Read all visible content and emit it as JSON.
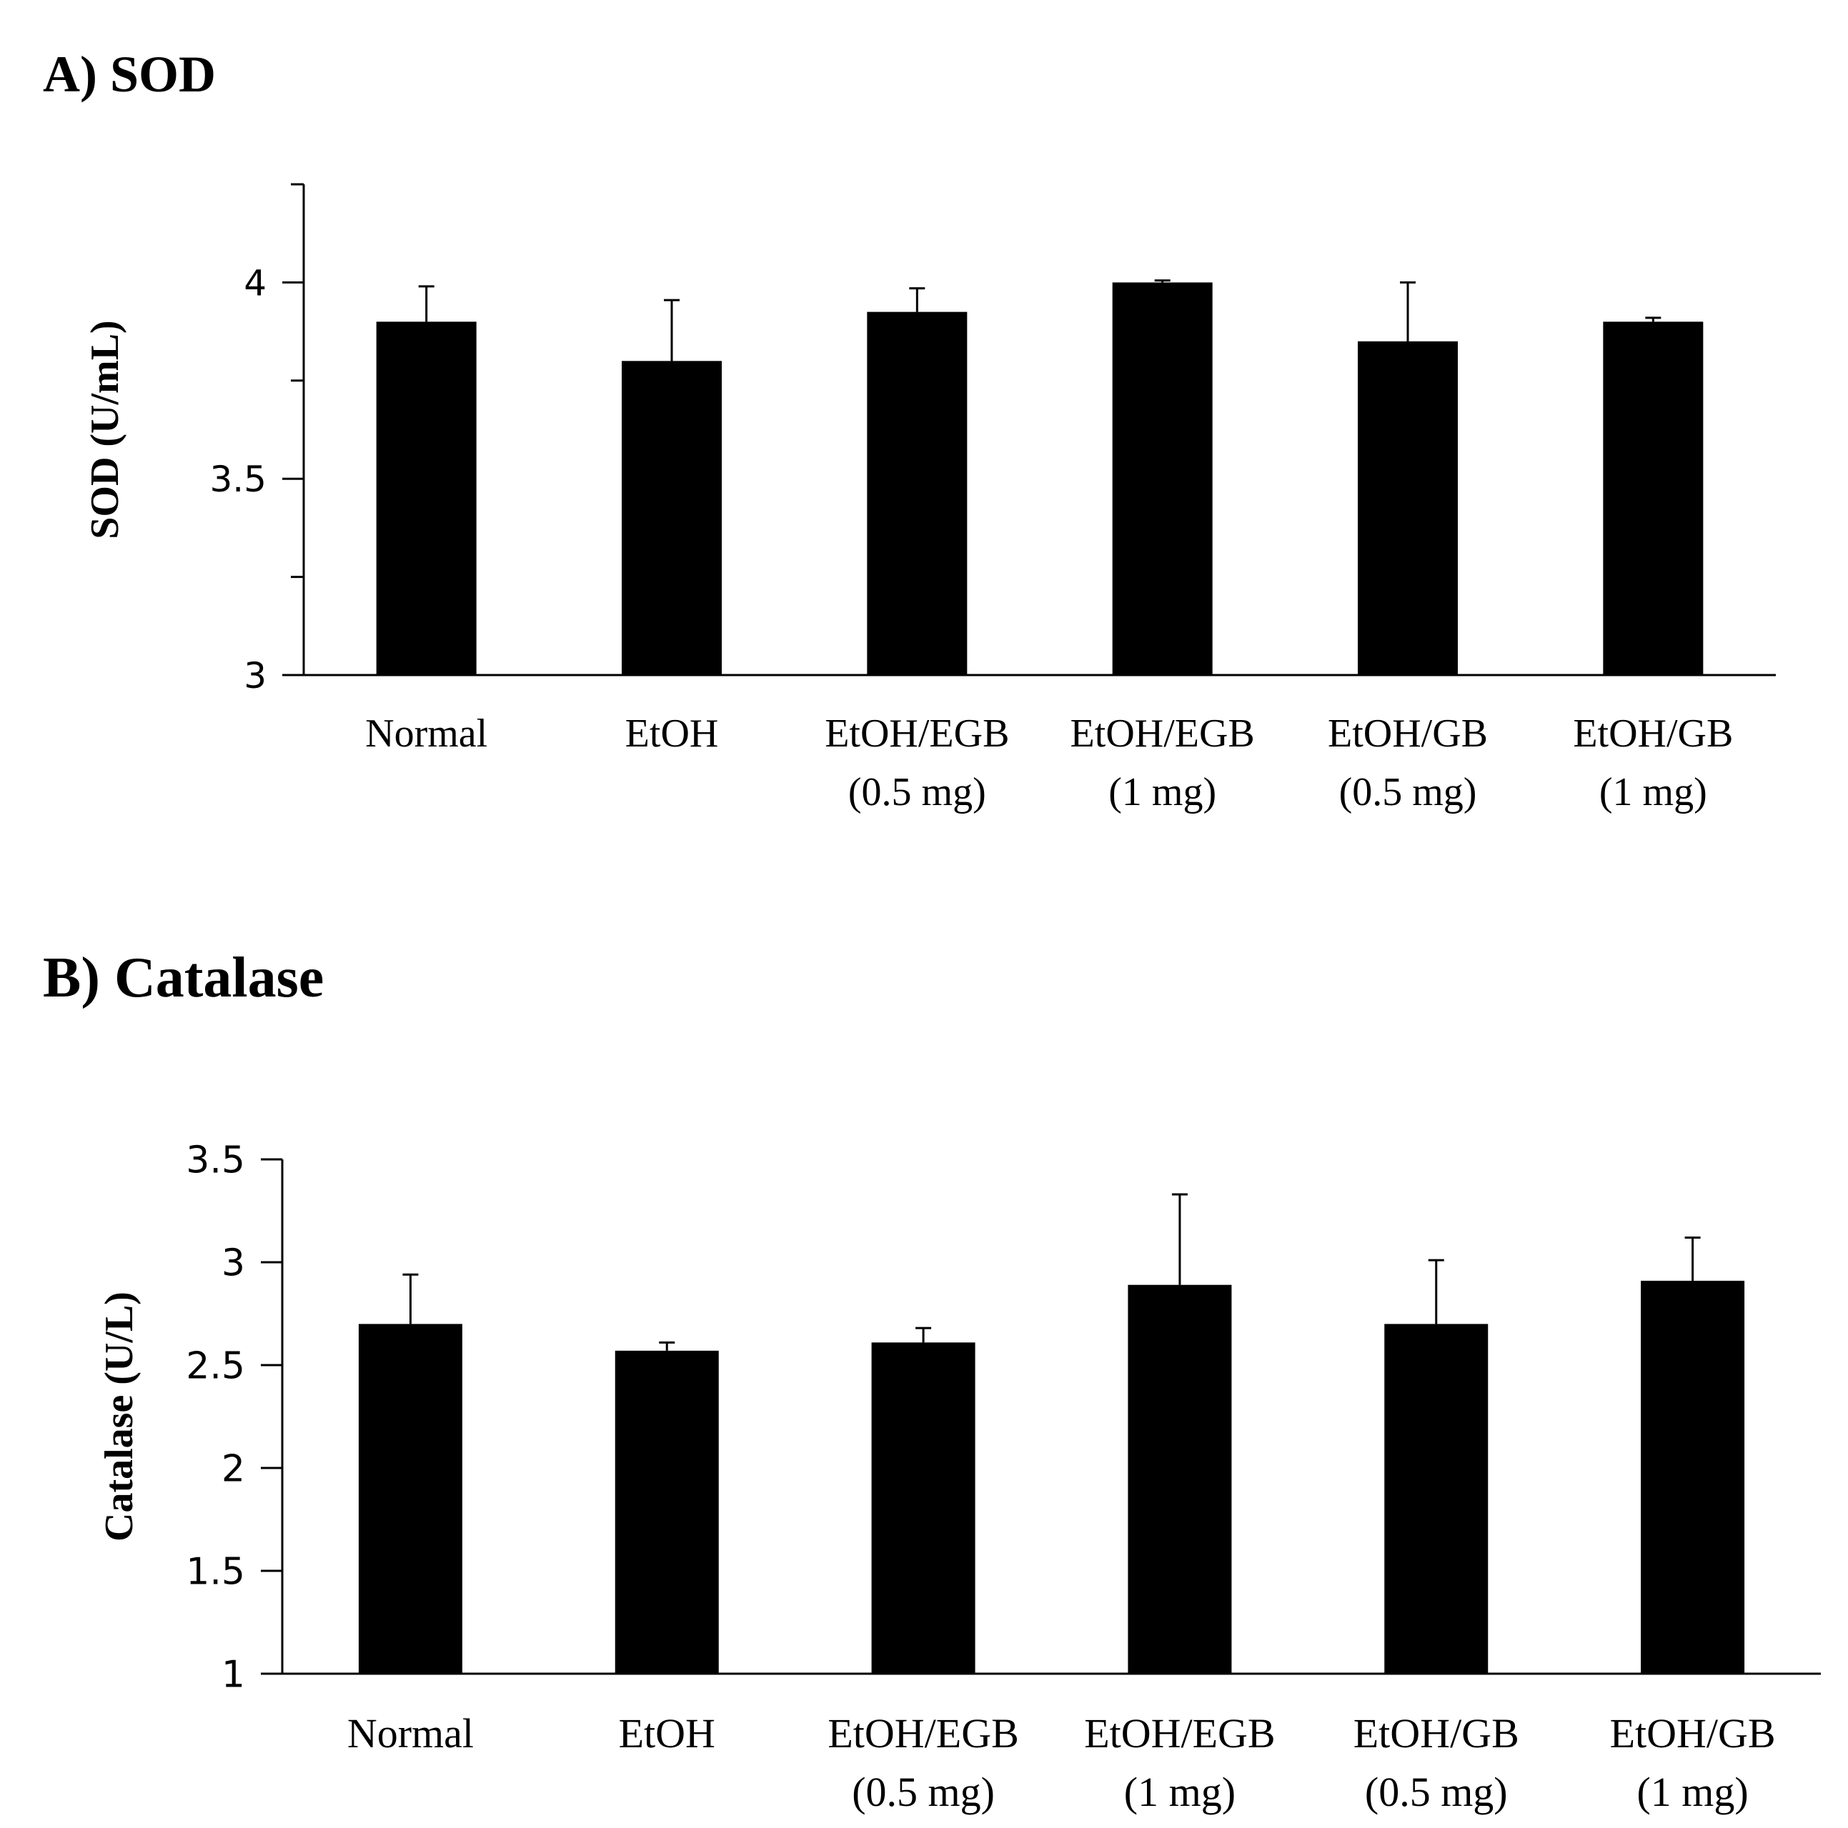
{
  "chart_data": [
    {
      "type": "bar",
      "title": "A) SOD",
      "xlabel": "",
      "ylabel": "SOD (U/mL)",
      "ylim": [
        3,
        4.25
      ],
      "yticks": [
        "3",
        "3.5",
        "4"
      ],
      "ytick_values": [
        3,
        3.5,
        4
      ],
      "minor_tick_values": [
        3.25,
        3.75,
        4.25
      ],
      "categories": [
        [
          "Normal"
        ],
        [
          "EtOH"
        ],
        [
          "EtOH/EGB",
          "(0.5 mg)"
        ],
        [
          "EtOH/EGB",
          "(1 mg)"
        ],
        [
          "EtOH/GB",
          "(0.5 mg)"
        ],
        [
          "EtOH/GB",
          "(1 mg)"
        ]
      ],
      "values": [
        3.9,
        3.8,
        3.925,
        4.0,
        3.85,
        3.9
      ],
      "errors": [
        0.09,
        0.155,
        0.06,
        0.005,
        0.15,
        0.01
      ],
      "bar_color": "#000000"
    },
    {
      "type": "bar",
      "title": "B) Catalase",
      "xlabel": "",
      "ylabel": "Catalase (U/L)",
      "ylim": [
        1,
        3.5
      ],
      "yticks": [
        "1",
        "1.5",
        "2",
        "2.5",
        "3",
        "3.5"
      ],
      "ytick_values": [
        1,
        1.5,
        2,
        2.5,
        3,
        3.5
      ],
      "minor_tick_values": [],
      "categories": [
        [
          "Normal"
        ],
        [
          "EtOH"
        ],
        [
          "EtOH/EGB",
          "(0.5 mg)"
        ],
        [
          "EtOH/EGB",
          "(1 mg)"
        ],
        [
          "EtOH/GB",
          "(0.5 mg)"
        ],
        [
          "EtOH/GB",
          "(1 mg)"
        ]
      ],
      "values": [
        2.7,
        2.57,
        2.61,
        2.89,
        2.7,
        2.91
      ],
      "errors": [
        0.24,
        0.04,
        0.07,
        0.44,
        0.31,
        0.21
      ],
      "bar_color": "#000000"
    }
  ]
}
